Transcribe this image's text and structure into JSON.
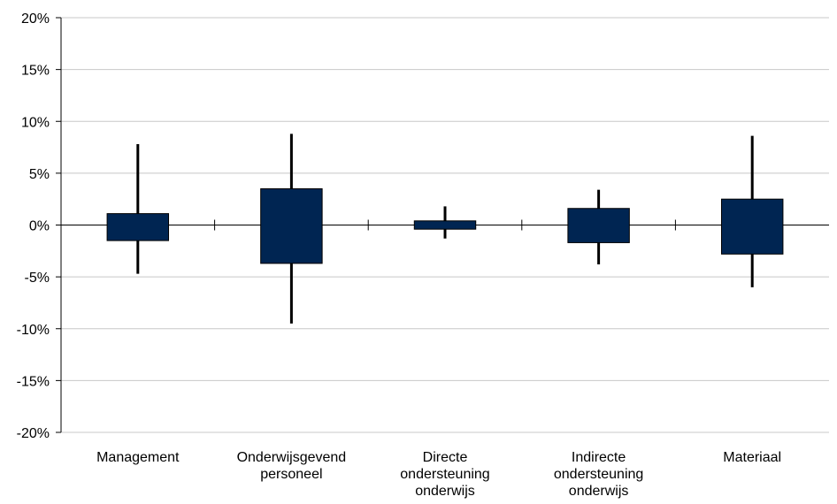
{
  "chart_data": {
    "type": "candlestick",
    "title": "",
    "xlabel": "",
    "ylabel": "",
    "ylim": [
      -20,
      20
    ],
    "y_unit": "%",
    "y_ticks": [
      20,
      15,
      10,
      5,
      0,
      -5,
      -10,
      -15,
      -20
    ],
    "y_tick_labels": [
      "20%",
      "15%",
      "10%",
      "5%",
      "0%",
      "-5%",
      "-10%",
      "-15%",
      "-20%"
    ],
    "grid": true,
    "categories": [
      "Management",
      "Onderwijsgevend personeel",
      "Directe ondersteuning onderwijs",
      "Indirecte ondersteuning onderwijs",
      "Materiaal"
    ],
    "category_label_lines": [
      [
        "Management"
      ],
      [
        "Onderwijsgevend",
        "personeel"
      ],
      [
        "Directe",
        "ondersteuning",
        "onderwijs"
      ],
      [
        "Indirecte",
        "ondersteuning",
        "onderwijs"
      ],
      [
        "Materiaal"
      ]
    ],
    "series": [
      {
        "box_top": [
          1.1,
          3.5,
          0.4,
          1.6,
          2.5
        ],
        "box_bottom": [
          -1.5,
          -3.7,
          -0.4,
          -1.7,
          -2.8
        ],
        "high": [
          7.8,
          8.8,
          1.8,
          3.4,
          8.6
        ],
        "low": [
          -4.7,
          -9.5,
          -1.3,
          -3.8,
          -6.0
        ]
      }
    ],
    "colors": {
      "box_fill": "#002552",
      "whisker": "#000000",
      "gridline": "#c8c8c8",
      "axis": "#000000"
    }
  }
}
